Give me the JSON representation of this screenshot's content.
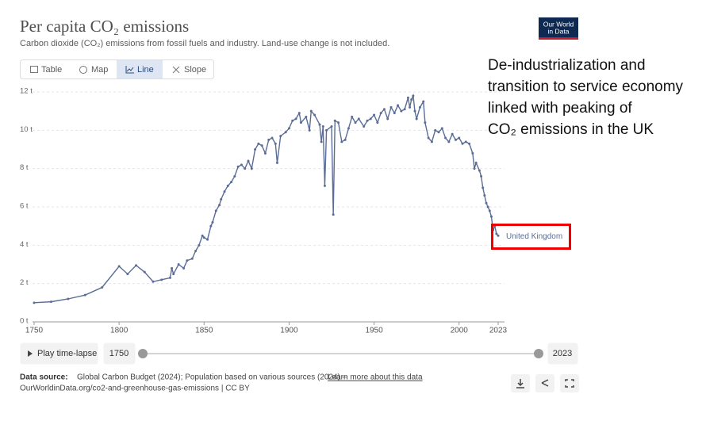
{
  "chart_data": {
    "type": "line",
    "title": "Per capita CO₂ emissions",
    "subtitle": "Carbon dioxide (CO₂) emissions from fossil fuels and industry. Land-use change is not included.",
    "x": [
      1750,
      1760,
      1770,
      1780,
      1790,
      1800,
      1805,
      1810,
      1815,
      1820,
      1825,
      1830,
      1831,
      1832,
      1835,
      1838,
      1840,
      1843,
      1845,
      1847,
      1849,
      1850,
      1852,
      1854,
      1855,
      1857,
      1859,
      1860,
      1862,
      1864,
      1866,
      1868,
      1870,
      1872,
      1874,
      1876,
      1878,
      1880,
      1882,
      1884,
      1886,
      1888,
      1890,
      1892,
      1893,
      1895,
      1898,
      1900,
      1902,
      1904,
      1906,
      1907,
      1910,
      1912,
      1913,
      1915,
      1918,
      1919,
      1920,
      1921,
      1922,
      1925,
      1926,
      1927,
      1929,
      1931,
      1933,
      1935,
      1937,
      1939,
      1941,
      1944,
      1946,
      1948,
      1950,
      1952,
      1954,
      1956,
      1958,
      1960,
      1962,
      1964,
      1966,
      1968,
      1970,
      1971,
      1972,
      1973,
      1974,
      1975,
      1977,
      1979,
      1980,
      1982,
      1984,
      1986,
      1988,
      1990,
      1992,
      1994,
      1996,
      1998,
      2000,
      2002,
      2004,
      2006,
      2008,
      2009,
      2010,
      2012,
      2013,
      2014,
      2015,
      2016,
      2017,
      2018,
      2019,
      2020,
      2021,
      2022,
      2023
    ],
    "series": [
      {
        "name": "United Kingdom",
        "color": "#5b6d96",
        "values": [
          1.0,
          1.05,
          1.2,
          1.4,
          1.8,
          2.9,
          2.5,
          2.95,
          2.6,
          2.1,
          2.2,
          2.3,
          2.8,
          2.5,
          3.0,
          2.8,
          3.2,
          3.3,
          3.7,
          4.0,
          4.5,
          4.4,
          4.3,
          5.0,
          5.2,
          5.8,
          6.1,
          6.4,
          6.8,
          7.1,
          7.3,
          7.6,
          8.1,
          8.2,
          8.0,
          8.4,
          8.0,
          9.0,
          9.3,
          9.2,
          8.8,
          9.5,
          9.6,
          9.3,
          8.3,
          9.7,
          9.9,
          10.1,
          10.5,
          10.6,
          10.9,
          10.4,
          10.7,
          10.0,
          11.0,
          10.8,
          10.3,
          9.4,
          10.2,
          7.1,
          10.0,
          10.2,
          5.6,
          10.5,
          10.4,
          9.4,
          9.5,
          10.1,
          10.7,
          10.4,
          10.6,
          10.2,
          10.5,
          10.6,
          10.8,
          10.4,
          10.9,
          11.1,
          10.6,
          11.2,
          10.9,
          11.3,
          11.0,
          11.1,
          11.7,
          11.2,
          11.6,
          11.8,
          11.0,
          10.6,
          11.2,
          11.5,
          10.4,
          9.6,
          9.4,
          10.0,
          9.9,
          10.1,
          9.6,
          9.4,
          9.8,
          9.5,
          9.6,
          9.3,
          9.4,
          9.3,
          8.8,
          8.0,
          8.3,
          7.9,
          7.6,
          7.0,
          6.6,
          6.2,
          6.0,
          5.8,
          5.5,
          4.8,
          5.0,
          4.6,
          4.5
        ]
      }
    ],
    "xlim": [
      1750,
      2023
    ],
    "xticks": [
      1750,
      1800,
      1850,
      1900,
      1950,
      2000,
      2023
    ],
    "ylim": [
      0,
      12
    ],
    "yticks": [
      {
        "value": 0,
        "label": "0 t"
      },
      {
        "value": 2,
        "label": "2 t"
      },
      {
        "value": 4,
        "label": "4 t"
      },
      {
        "value": 6,
        "label": "6 t"
      },
      {
        "value": 8,
        "label": "8 t"
      },
      {
        "value": 10,
        "label": "10 t"
      },
      {
        "value": 12,
        "label": "12 t"
      }
    ],
    "grid": true,
    "annotation": [
      "De-industrialization and",
      "transition to service economy",
      "linked with peaking of",
      "CO₂ emissions in the UK"
    ]
  },
  "ui": {
    "tabs": [
      "Table",
      "Map",
      "Line",
      "Slope"
    ],
    "play": "Play time-lapse",
    "start": "1750",
    "end": "2023",
    "source_label": "Data source:",
    "source_text": "Global Carbon Budget (2024); Population based on various sources (2024) –",
    "source_link": "Learn more about this data",
    "url": "OurWorldinData.org/co2-and-greenhouse-gas-emissions | CC BY",
    "logo": [
      "Our World",
      "in Data"
    ]
  }
}
